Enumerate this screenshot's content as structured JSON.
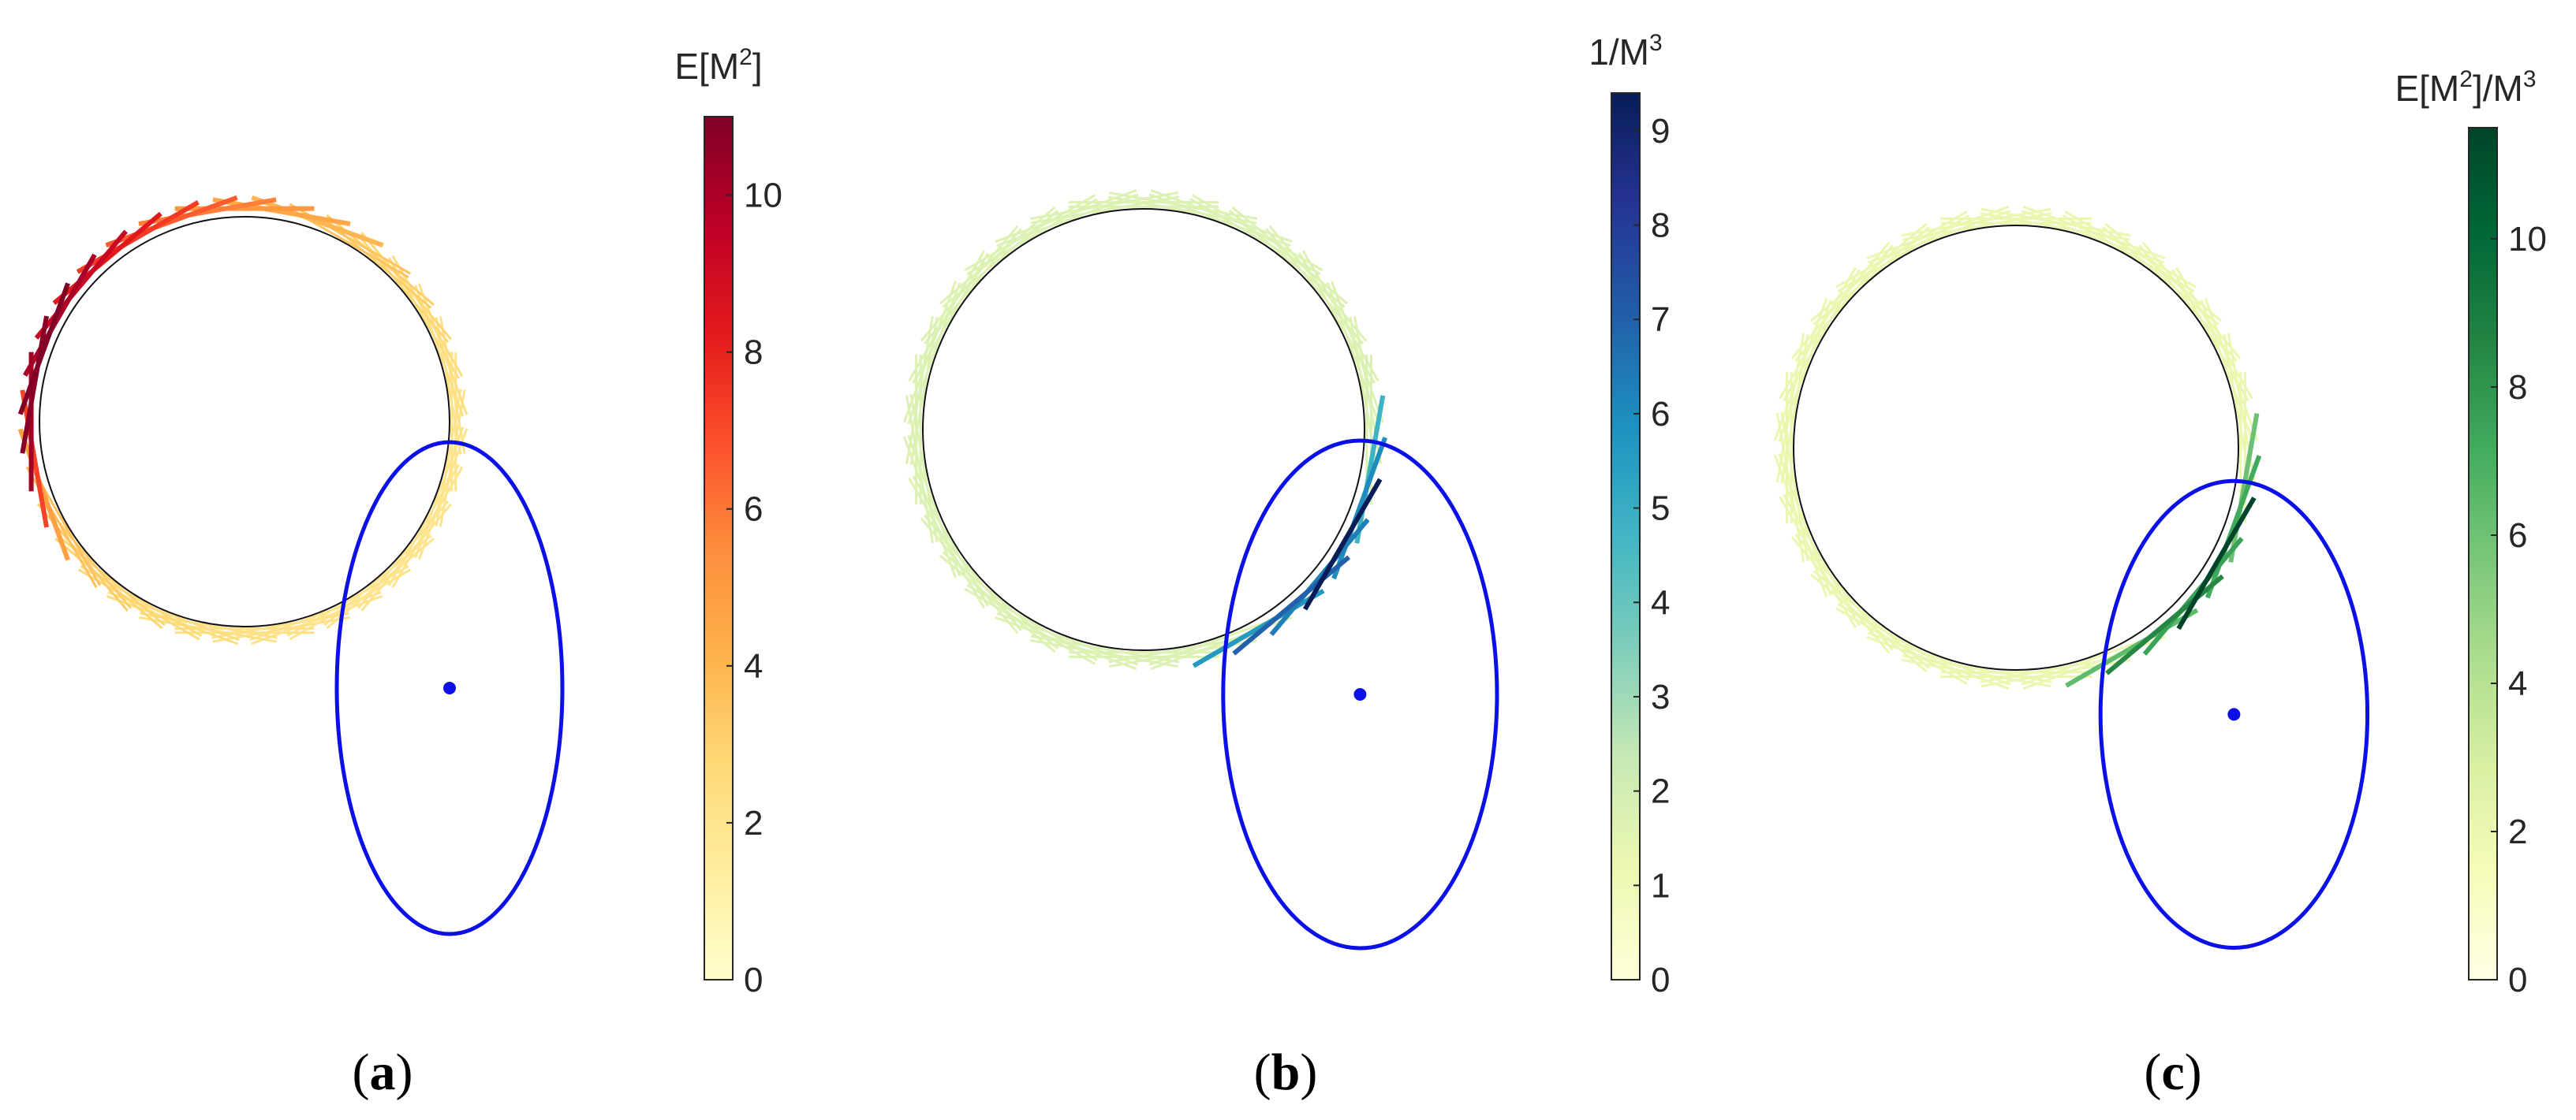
{
  "chart_data": [
    {
      "type": "line",
      "panel_label": "a",
      "colorbar": {
        "title_main": "E[M",
        "title_sup": "2",
        "title_end": "]",
        "colormap": "YlOrRd",
        "ylim": [
          0,
          11
        ],
        "ticks": [
          "0",
          "2",
          "4",
          "6",
          "8",
          "10"
        ]
      },
      "scene": {
        "circle_center": [
          0,
          0
        ],
        "circle_radius": 1,
        "ellipse_center": [
          1.0,
          -1.3
        ],
        "ellipse_semi_axes": [
          0.55,
          1.2
        ],
        "point": [
          1.0,
          -1.3
        ],
        "ellipse_color": "#0a10e6"
      },
      "segments": [
        {
          "angle_deg": 180,
          "value": 10.2
        },
        {
          "angle_deg": 170,
          "value": 10.8
        },
        {
          "angle_deg": 160,
          "value": 11.0
        },
        {
          "angle_deg": 150,
          "value": 10.1
        },
        {
          "angle_deg": 140,
          "value": 9.2
        },
        {
          "angle_deg": 130,
          "value": 8.3
        },
        {
          "angle_deg": 120,
          "value": 7.4
        },
        {
          "angle_deg": 110,
          "value": 6.6
        },
        {
          "angle_deg": 100,
          "value": 5.8
        },
        {
          "angle_deg": 90,
          "value": 5.1
        },
        {
          "angle_deg": 80,
          "value": 4.5
        },
        {
          "angle_deg": 70,
          "value": 4.0
        },
        {
          "angle_deg": 60,
          "value": 3.5
        },
        {
          "angle_deg": 50,
          "value": 3.1
        },
        {
          "angle_deg": 40,
          "value": 2.8
        },
        {
          "angle_deg": 30,
          "value": 2.5
        },
        {
          "angle_deg": 20,
          "value": 2.3
        },
        {
          "angle_deg": 10,
          "value": 2.1
        },
        {
          "angle_deg": 0,
          "value": 2.0
        },
        {
          "angle_deg": -10,
          "value": 1.9
        },
        {
          "angle_deg": -20,
          "value": 1.8
        },
        {
          "angle_deg": -30,
          "value": 1.7
        },
        {
          "angle_deg": -40,
          "value": 1.7
        },
        {
          "angle_deg": -50,
          "value": 1.8
        },
        {
          "angle_deg": -60,
          "value": 1.9
        },
        {
          "angle_deg": -70,
          "value": 2.0
        },
        {
          "angle_deg": -80,
          "value": 2.1
        },
        {
          "angle_deg": -90,
          "value": 2.2
        },
        {
          "angle_deg": -100,
          "value": 2.3
        },
        {
          "angle_deg": -110,
          "value": 2.5
        },
        {
          "angle_deg": -120,
          "value": 2.7
        },
        {
          "angle_deg": -130,
          "value": 2.9
        },
        {
          "angle_deg": -140,
          "value": 3.2
        },
        {
          "angle_deg": -150,
          "value": 3.6
        },
        {
          "angle_deg": -160,
          "value": 4.8
        },
        {
          "angle_deg": -170,
          "value": 7.2
        }
      ]
    },
    {
      "type": "line",
      "panel_label": "b",
      "colorbar": {
        "title_main": "1/M",
        "title_sup": "3",
        "title_end": "",
        "colormap": "YlGnBu",
        "ylim": [
          0,
          9.4
        ],
        "ticks": [
          "0",
          "1",
          "2",
          "3",
          "4",
          "5",
          "6",
          "7",
          "8",
          "9"
        ]
      },
      "scene": {
        "circle_center": [
          0,
          0
        ],
        "circle_radius": 1,
        "ellipse_center": [
          0.98,
          -1.2
        ],
        "ellipse_semi_axes": [
          0.62,
          1.15
        ],
        "point": [
          0.98,
          -1.2
        ],
        "ellipse_color": "#0a10e6"
      },
      "segments": [
        {
          "angle_deg": 180,
          "value": 0.1
        },
        {
          "angle_deg": 170,
          "value": 0.1
        },
        {
          "angle_deg": 160,
          "value": 0.1
        },
        {
          "angle_deg": 150,
          "value": 0.1
        },
        {
          "angle_deg": 140,
          "value": 0.1
        },
        {
          "angle_deg": 130,
          "value": 0.1
        },
        {
          "angle_deg": 120,
          "value": 0.1
        },
        {
          "angle_deg": 110,
          "value": 0.1
        },
        {
          "angle_deg": 100,
          "value": 0.1
        },
        {
          "angle_deg": 90,
          "value": 0.1
        },
        {
          "angle_deg": 80,
          "value": 0.1
        },
        {
          "angle_deg": 70,
          "value": 0.1
        },
        {
          "angle_deg": 60,
          "value": 0.1
        },
        {
          "angle_deg": 50,
          "value": 0.2
        },
        {
          "angle_deg": 40,
          "value": 0.3
        },
        {
          "angle_deg": 30,
          "value": 0.4
        },
        {
          "angle_deg": 20,
          "value": 0.6
        },
        {
          "angle_deg": 10,
          "value": 1.0
        },
        {
          "angle_deg": 0,
          "value": 1.8
        },
        {
          "angle_deg": -10,
          "value": 4.8
        },
        {
          "angle_deg": -20,
          "value": 6.0
        },
        {
          "angle_deg": -30,
          "value": 9.4
        },
        {
          "angle_deg": -40,
          "value": 6.3
        },
        {
          "angle_deg": -50,
          "value": 7.0
        },
        {
          "angle_deg": -60,
          "value": 5.6
        },
        {
          "angle_deg": -70,
          "value": 1.4
        },
        {
          "angle_deg": -80,
          "value": 0.5
        },
        {
          "angle_deg": -90,
          "value": 0.3
        },
        {
          "angle_deg": -100,
          "value": 0.2
        },
        {
          "angle_deg": -110,
          "value": 0.1
        },
        {
          "angle_deg": -120,
          "value": 0.1
        },
        {
          "angle_deg": -130,
          "value": 0.1
        },
        {
          "angle_deg": -140,
          "value": 0.1
        },
        {
          "angle_deg": -150,
          "value": 0.1
        },
        {
          "angle_deg": -160,
          "value": 0.1
        },
        {
          "angle_deg": -170,
          "value": 0.1
        }
      ]
    },
    {
      "type": "line",
      "panel_label": "c",
      "colorbar": {
        "title_main": "E[M",
        "title_sup": "2",
        "title_end": "]/M",
        "title_sup2": "3",
        "colormap": "YlGn",
        "ylim": [
          0,
          11.5
        ],
        "ticks": [
          "0",
          "2",
          "4",
          "6",
          "8",
          "10"
        ]
      },
      "scene": {
        "circle_center": [
          0,
          0
        ],
        "circle_radius": 1,
        "ellipse_center": [
          0.98,
          -1.2
        ],
        "ellipse_semi_axes": [
          0.6,
          1.05
        ],
        "point": [
          0.98,
          -1.2
        ],
        "ellipse_color": "#0a10e6"
      },
      "segments": [
        {
          "angle_deg": 180,
          "value": 0.3
        },
        {
          "angle_deg": 170,
          "value": 0.3
        },
        {
          "angle_deg": 160,
          "value": 0.3
        },
        {
          "angle_deg": 150,
          "value": 0.3
        },
        {
          "angle_deg": 140,
          "value": 0.3
        },
        {
          "angle_deg": 130,
          "value": 0.3
        },
        {
          "angle_deg": 120,
          "value": 0.3
        },
        {
          "angle_deg": 110,
          "value": 0.3
        },
        {
          "angle_deg": 100,
          "value": 0.3
        },
        {
          "angle_deg": 90,
          "value": 0.3
        },
        {
          "angle_deg": 80,
          "value": 0.3
        },
        {
          "angle_deg": 70,
          "value": 0.3
        },
        {
          "angle_deg": 60,
          "value": 0.3
        },
        {
          "angle_deg": 50,
          "value": 0.4
        },
        {
          "angle_deg": 40,
          "value": 0.5
        },
        {
          "angle_deg": 30,
          "value": 0.7
        },
        {
          "angle_deg": 20,
          "value": 0.9
        },
        {
          "angle_deg": 10,
          "value": 1.3
        },
        {
          "angle_deg": 0,
          "value": 2.0
        },
        {
          "angle_deg": -10,
          "value": 6.0
        },
        {
          "angle_deg": -20,
          "value": 7.2
        },
        {
          "angle_deg": -30,
          "value": 11.5
        },
        {
          "angle_deg": -40,
          "value": 7.5
        },
        {
          "angle_deg": -50,
          "value": 8.5
        },
        {
          "angle_deg": -60,
          "value": 6.4
        },
        {
          "angle_deg": -70,
          "value": 1.8
        },
        {
          "angle_deg": -80,
          "value": 0.8
        },
        {
          "angle_deg": -90,
          "value": 0.5
        },
        {
          "angle_deg": -100,
          "value": 0.4
        },
        {
          "angle_deg": -110,
          "value": 0.3
        },
        {
          "angle_deg": -120,
          "value": 0.3
        },
        {
          "angle_deg": -130,
          "value": 0.3
        },
        {
          "angle_deg": -140,
          "value": 0.3
        },
        {
          "angle_deg": -150,
          "value": 0.3
        },
        {
          "angle_deg": -160,
          "value": 0.3
        },
        {
          "angle_deg": -170,
          "value": 0.3
        }
      ]
    }
  ]
}
